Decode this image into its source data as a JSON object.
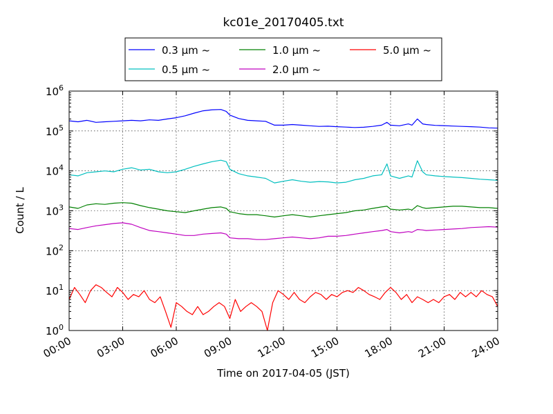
{
  "chart_data": {
    "type": "line",
    "title": "kc01e_20170405.txt",
    "xlabel": "Time on 2017-04-05 (JST)",
    "ylabel": "Count / L",
    "yscale": "log",
    "ylim": [
      1,
      1000000
    ],
    "xlim": [
      0,
      24
    ],
    "x_unit": "hours",
    "grid": true,
    "legend_position": "top-center",
    "x_tick_labels": [
      "00:00",
      "03:00",
      "06:00",
      "09:00",
      "12:00",
      "15:00",
      "18:00",
      "21:00",
      "24:00"
    ],
    "y_tick_labels": [
      {
        "base": "10",
        "exp": "0"
      },
      {
        "base": "10",
        "exp": "1"
      },
      {
        "base": "10",
        "exp": "2"
      },
      {
        "base": "10",
        "exp": "3"
      },
      {
        "base": "10",
        "exp": "4"
      },
      {
        "base": "10",
        "exp": "5"
      },
      {
        "base": "10",
        "exp": "6"
      }
    ],
    "series": [
      {
        "name": "0.3 μm ~",
        "color": "#0000ff",
        "points": [
          [
            0,
            180000
          ],
          [
            0.5,
            170000
          ],
          [
            1,
            185000
          ],
          [
            1.5,
            165000
          ],
          [
            2,
            170000
          ],
          [
            2.5,
            175000
          ],
          [
            3,
            180000
          ],
          [
            3.5,
            185000
          ],
          [
            4,
            180000
          ],
          [
            4.5,
            190000
          ],
          [
            5,
            185000
          ],
          [
            5.5,
            200000
          ],
          [
            6,
            215000
          ],
          [
            6.5,
            240000
          ],
          [
            7,
            280000
          ],
          [
            7.5,
            320000
          ],
          [
            8,
            340000
          ],
          [
            8.5,
            345000
          ],
          [
            8.8,
            310000
          ],
          [
            9,
            250000
          ],
          [
            9.5,
            205000
          ],
          [
            10,
            185000
          ],
          [
            10.5,
            180000
          ],
          [
            11,
            175000
          ],
          [
            11.5,
            140000
          ],
          [
            12,
            140000
          ],
          [
            12.5,
            145000
          ],
          [
            13,
            140000
          ],
          [
            13.5,
            135000
          ],
          [
            14,
            130000
          ],
          [
            14.5,
            132000
          ],
          [
            15,
            128000
          ],
          [
            15.5,
            125000
          ],
          [
            16,
            122000
          ],
          [
            16.5,
            124000
          ],
          [
            17,
            130000
          ],
          [
            17.5,
            140000
          ],
          [
            17.8,
            165000
          ],
          [
            18,
            140000
          ],
          [
            18.5,
            135000
          ],
          [
            19,
            150000
          ],
          [
            19.2,
            140000
          ],
          [
            19.5,
            200000
          ],
          [
            19.8,
            150000
          ],
          [
            20,
            145000
          ],
          [
            20.5,
            138000
          ],
          [
            21,
            136000
          ],
          [
            21.5,
            133000
          ],
          [
            22,
            130000
          ],
          [
            22.5,
            128000
          ],
          [
            23,
            125000
          ],
          [
            23.5,
            120000
          ],
          [
            24,
            118000
          ]
        ]
      },
      {
        "name": "0.5 μm ~",
        "color": "#00bfbf",
        "points": [
          [
            0,
            8000
          ],
          [
            0.5,
            7500
          ],
          [
            1,
            9000
          ],
          [
            1.5,
            9500
          ],
          [
            2,
            10000
          ],
          [
            2.5,
            9500
          ],
          [
            3,
            11000
          ],
          [
            3.5,
            12000
          ],
          [
            4,
            10500
          ],
          [
            4.5,
            11000
          ],
          [
            5,
            9500
          ],
          [
            5.5,
            9000
          ],
          [
            6,
            9500
          ],
          [
            6.5,
            11000
          ],
          [
            7,
            13000
          ],
          [
            7.5,
            15000
          ],
          [
            8,
            17000
          ],
          [
            8.5,
            18500
          ],
          [
            8.8,
            17000
          ],
          [
            9,
            11000
          ],
          [
            9.5,
            8500
          ],
          [
            10,
            7500
          ],
          [
            10.5,
            7000
          ],
          [
            11,
            6500
          ],
          [
            11.5,
            5000
          ],
          [
            12,
            5500
          ],
          [
            12.5,
            6000
          ],
          [
            13,
            5500
          ],
          [
            13.5,
            5200
          ],
          [
            14,
            5400
          ],
          [
            14.5,
            5300
          ],
          [
            15,
            5000
          ],
          [
            15.5,
            5200
          ],
          [
            16,
            6000
          ],
          [
            16.5,
            6500
          ],
          [
            17,
            7500
          ],
          [
            17.5,
            8000
          ],
          [
            17.8,
            15000
          ],
          [
            18,
            7500
          ],
          [
            18.5,
            6500
          ],
          [
            19,
            7500
          ],
          [
            19.2,
            7000
          ],
          [
            19.5,
            18000
          ],
          [
            19.8,
            9500
          ],
          [
            20,
            8000
          ],
          [
            20.5,
            7500
          ],
          [
            21,
            7200
          ],
          [
            21.5,
            7000
          ],
          [
            22,
            6800
          ],
          [
            22.5,
            6500
          ],
          [
            23,
            6200
          ],
          [
            23.5,
            6000
          ],
          [
            24,
            5800
          ]
        ]
      },
      {
        "name": "1.0 μm ~",
        "color": "#008000",
        "points": [
          [
            0,
            1250
          ],
          [
            0.5,
            1150
          ],
          [
            1,
            1400
          ],
          [
            1.5,
            1500
          ],
          [
            2,
            1450
          ],
          [
            2.5,
            1550
          ],
          [
            3,
            1600
          ],
          [
            3.5,
            1550
          ],
          [
            4,
            1350
          ],
          [
            4.5,
            1200
          ],
          [
            5,
            1100
          ],
          [
            5.5,
            1000
          ],
          [
            6,
            950
          ],
          [
            6.5,
            900
          ],
          [
            7,
            1000
          ],
          [
            7.5,
            1100
          ],
          [
            8,
            1200
          ],
          [
            8.5,
            1250
          ],
          [
            8.8,
            1150
          ],
          [
            9,
            950
          ],
          [
            9.5,
            850
          ],
          [
            10,
            800
          ],
          [
            10.5,
            800
          ],
          [
            11,
            750
          ],
          [
            11.5,
            700
          ],
          [
            12,
            750
          ],
          [
            12.5,
            800
          ],
          [
            13,
            750
          ],
          [
            13.5,
            700
          ],
          [
            14,
            750
          ],
          [
            14.5,
            800
          ],
          [
            15,
            850
          ],
          [
            15.5,
            900
          ],
          [
            16,
            1000
          ],
          [
            16.5,
            1050
          ],
          [
            17,
            1150
          ],
          [
            17.5,
            1250
          ],
          [
            17.8,
            1300
          ],
          [
            18,
            1100
          ],
          [
            18.5,
            1050
          ],
          [
            19,
            1100
          ],
          [
            19.2,
            1050
          ],
          [
            19.5,
            1350
          ],
          [
            19.8,
            1200
          ],
          [
            20,
            1150
          ],
          [
            20.5,
            1200
          ],
          [
            21,
            1250
          ],
          [
            21.5,
            1300
          ],
          [
            22,
            1300
          ],
          [
            22.5,
            1250
          ],
          [
            23,
            1200
          ],
          [
            23.5,
            1200
          ],
          [
            24,
            1150
          ]
        ]
      },
      {
        "name": "2.0 μm ~",
        "color": "#bf00bf",
        "points": [
          [
            0,
            360
          ],
          [
            0.5,
            340
          ],
          [
            1,
            380
          ],
          [
            1.5,
            420
          ],
          [
            2,
            450
          ],
          [
            2.5,
            480
          ],
          [
            3,
            500
          ],
          [
            3.5,
            460
          ],
          [
            4,
            380
          ],
          [
            4.5,
            320
          ],
          [
            5,
            300
          ],
          [
            5.5,
            280
          ],
          [
            6,
            260
          ],
          [
            6.5,
            240
          ],
          [
            7,
            240
          ],
          [
            7.5,
            260
          ],
          [
            8,
            270
          ],
          [
            8.5,
            280
          ],
          [
            8.8,
            260
          ],
          [
            9,
            210
          ],
          [
            9.5,
            200
          ],
          [
            10,
            200
          ],
          [
            10.5,
            190
          ],
          [
            11,
            190
          ],
          [
            11.5,
            200
          ],
          [
            12,
            210
          ],
          [
            12.5,
            220
          ],
          [
            13,
            210
          ],
          [
            13.5,
            200
          ],
          [
            14,
            210
          ],
          [
            14.5,
            230
          ],
          [
            15,
            230
          ],
          [
            15.5,
            240
          ],
          [
            16,
            260
          ],
          [
            16.5,
            280
          ],
          [
            17,
            300
          ],
          [
            17.5,
            320
          ],
          [
            17.8,
            340
          ],
          [
            18,
            300
          ],
          [
            18.5,
            280
          ],
          [
            19,
            300
          ],
          [
            19.2,
            290
          ],
          [
            19.5,
            340
          ],
          [
            19.8,
            330
          ],
          [
            20,
            320
          ],
          [
            20.5,
            330
          ],
          [
            21,
            340
          ],
          [
            21.5,
            350
          ],
          [
            22,
            360
          ],
          [
            22.5,
            380
          ],
          [
            23,
            390
          ],
          [
            23.5,
            400
          ],
          [
            24,
            390
          ]
        ]
      },
      {
        "name": "5.0 μm ~",
        "color": "#ff0000",
        "points": [
          [
            0,
            6
          ],
          [
            0.3,
            12
          ],
          [
            0.6,
            8
          ],
          [
            0.9,
            5
          ],
          [
            1.2,
            10
          ],
          [
            1.5,
            14
          ],
          [
            1.8,
            12
          ],
          [
            2.1,
            9
          ],
          [
            2.4,
            7
          ],
          [
            2.7,
            12
          ],
          [
            3,
            9
          ],
          [
            3.3,
            6
          ],
          [
            3.6,
            8
          ],
          [
            3.9,
            7
          ],
          [
            4.2,
            10
          ],
          [
            4.5,
            6
          ],
          [
            4.8,
            5
          ],
          [
            5.1,
            7
          ],
          [
            5.4,
            3
          ],
          [
            5.7,
            1.2
          ],
          [
            6,
            5
          ],
          [
            6.3,
            4
          ],
          [
            6.6,
            3
          ],
          [
            6.9,
            2.5
          ],
          [
            7.2,
            4
          ],
          [
            7.5,
            2.5
          ],
          [
            7.8,
            3
          ],
          [
            8.1,
            4
          ],
          [
            8.4,
            5
          ],
          [
            8.7,
            4
          ],
          [
            9,
            2
          ],
          [
            9.3,
            6
          ],
          [
            9.6,
            3
          ],
          [
            9.9,
            4
          ],
          [
            10.2,
            5
          ],
          [
            10.5,
            4
          ],
          [
            10.8,
            3
          ],
          [
            11.1,
            1
          ],
          [
            11.4,
            5
          ],
          [
            11.7,
            10
          ],
          [
            12,
            8
          ],
          [
            12.3,
            6
          ],
          [
            12.6,
            9
          ],
          [
            12.9,
            6
          ],
          [
            13.2,
            5
          ],
          [
            13.5,
            7
          ],
          [
            13.8,
            9
          ],
          [
            14.1,
            8
          ],
          [
            14.4,
            6
          ],
          [
            14.7,
            8
          ],
          [
            15,
            7
          ],
          [
            15.3,
            9
          ],
          [
            15.6,
            10
          ],
          [
            15.9,
            9
          ],
          [
            16.2,
            12
          ],
          [
            16.5,
            10
          ],
          [
            16.8,
            8
          ],
          [
            17.1,
            7
          ],
          [
            17.4,
            6
          ],
          [
            17.7,
            9
          ],
          [
            18,
            12
          ],
          [
            18.3,
            9
          ],
          [
            18.6,
            6
          ],
          [
            18.9,
            8
          ],
          [
            19.2,
            5
          ],
          [
            19.5,
            7
          ],
          [
            19.8,
            6
          ],
          [
            20.1,
            5
          ],
          [
            20.4,
            6
          ],
          [
            20.7,
            5
          ],
          [
            21,
            7
          ],
          [
            21.3,
            8
          ],
          [
            21.6,
            6
          ],
          [
            21.9,
            9
          ],
          [
            22.2,
            7
          ],
          [
            22.5,
            9
          ],
          [
            22.8,
            7
          ],
          [
            23.1,
            10
          ],
          [
            23.4,
            8
          ],
          [
            23.7,
            7
          ],
          [
            24,
            4
          ]
        ]
      }
    ]
  }
}
